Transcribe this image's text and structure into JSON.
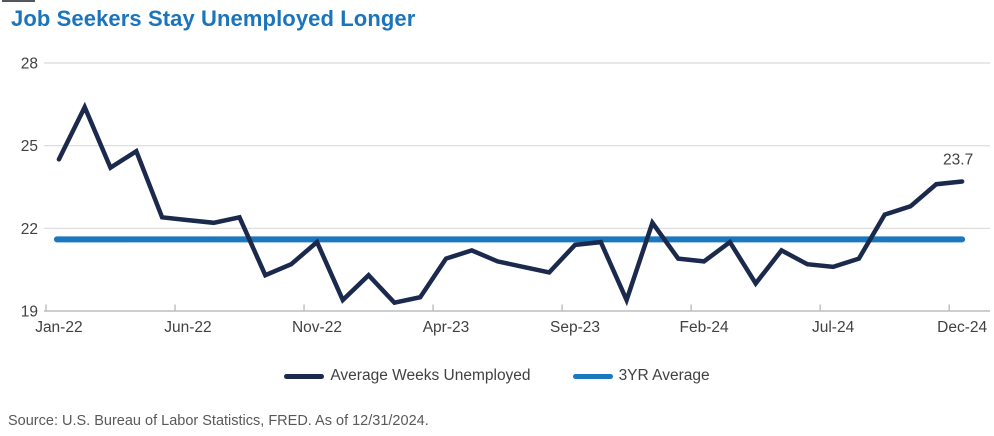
{
  "title": "Job Seekers Stay Unemployed Longer",
  "source_note": "Source: U.S. Bureau of Labor Statistics, FRED. As of 12/31/2024.",
  "colors": {
    "title": "#1b75bc",
    "series_line": "#1b2a4c",
    "average_line": "#1b78be",
    "grid": "#d9d9d9",
    "axis": "#bdbdbd",
    "tick_text": "#414141",
    "annotation_text": "#414141",
    "source_text": "#595959"
  },
  "legend": {
    "items": [
      {
        "label": "Average Weeks Unemployed",
        "color": "#1b2a4c"
      },
      {
        "label": "3YR Average",
        "color": "#1b78be"
      }
    ]
  },
  "chart_data": {
    "type": "line",
    "title": "Job Seekers Stay Unemployed Longer",
    "x": [
      "Jan-22",
      "Feb-22",
      "Mar-22",
      "Apr-22",
      "May-22",
      "Jun-22",
      "Jul-22",
      "Aug-22",
      "Sep-22",
      "Oct-22",
      "Nov-22",
      "Dec-22",
      "Jan-23",
      "Feb-23",
      "Mar-23",
      "Apr-23",
      "May-23",
      "Jun-23",
      "Jul-23",
      "Aug-23",
      "Sep-23",
      "Oct-23",
      "Nov-23",
      "Dec-23",
      "Jan-24",
      "Feb-24",
      "Mar-24",
      "Apr-24",
      "May-24",
      "Jun-24",
      "Jul-24",
      "Aug-24",
      "Sep-24",
      "Oct-24",
      "Nov-24",
      "Dec-24"
    ],
    "series": [
      {
        "name": "Average Weeks Unemployed",
        "color": "#1b2a4c",
        "values": [
          24.5,
          26.4,
          24.2,
          24.8,
          22.4,
          22.3,
          22.2,
          22.4,
          20.3,
          20.7,
          21.5,
          19.4,
          20.3,
          19.3,
          19.5,
          20.9,
          21.2,
          20.8,
          20.6,
          20.4,
          21.4,
          21.5,
          19.4,
          22.2,
          20.9,
          20.8,
          21.5,
          20.0,
          21.2,
          20.7,
          20.6,
          20.9,
          22.5,
          22.8,
          23.6,
          23.7
        ]
      },
      {
        "name": "3YR Average",
        "color": "#1b78be",
        "constant_value": 21.6
      }
    ],
    "ylim": [
      19,
      28
    ],
    "y_ticks": [
      19,
      22,
      25,
      28
    ],
    "x_tick_labels": [
      "Jan-22",
      "Jun-22",
      "Nov-22",
      "Apr-23",
      "Sep-23",
      "Feb-24",
      "Jul-24",
      "Dec-24"
    ],
    "x_tick_indices": [
      0,
      5,
      10,
      15,
      20,
      25,
      30,
      35
    ],
    "end_annotation": {
      "label": "23.7",
      "value": 23.7
    },
    "grid": "horizontal-only",
    "legend_position": "bottom"
  }
}
